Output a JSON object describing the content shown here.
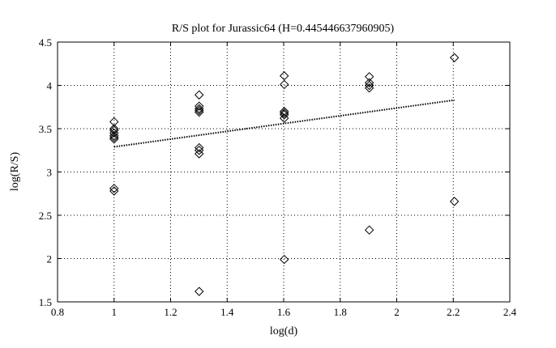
{
  "chart_data": {
    "type": "scatter",
    "title": "R/S plot for Jurassic64 (H=0.445446637960905)",
    "xlabel": "log(d)",
    "ylabel": "log(R/S)",
    "xlim": [
      0.8,
      2.4
    ],
    "ylim": [
      1.5,
      4.5
    ],
    "xticks": [
      0.8,
      1,
      1.2,
      1.4,
      1.6,
      1.8,
      2,
      2.2,
      2.4
    ],
    "xtick_labels": [
      "0.8",
      "1",
      "1.2",
      "1.4",
      "1.6",
      "1.8",
      "2",
      "2.2",
      "2.4"
    ],
    "yticks": [
      1.5,
      2,
      2.5,
      3,
      3.5,
      4,
      4.5
    ],
    "ytick_labels": [
      "1.5",
      "2",
      "2.5",
      "3",
      "3.5",
      "4",
      "4.5"
    ],
    "grid": true,
    "grid_style": "dotted",
    "points": [
      {
        "x": 1.0,
        "y": 3.58
      },
      {
        "x": 1.0,
        "y": 3.5
      },
      {
        "x": 1.0,
        "y": 3.48
      },
      {
        "x": 1.0,
        "y": 3.45
      },
      {
        "x": 1.0,
        "y": 3.42
      },
      {
        "x": 1.0,
        "y": 3.4
      },
      {
        "x": 1.0,
        "y": 3.38
      },
      {
        "x": 1.0,
        "y": 2.81
      },
      {
        "x": 1.0,
        "y": 2.78
      },
      {
        "x": 1.301,
        "y": 3.89
      },
      {
        "x": 1.301,
        "y": 3.76
      },
      {
        "x": 1.301,
        "y": 3.73
      },
      {
        "x": 1.301,
        "y": 3.71
      },
      {
        "x": 1.301,
        "y": 3.69
      },
      {
        "x": 1.301,
        "y": 3.28
      },
      {
        "x": 1.301,
        "y": 3.25
      },
      {
        "x": 1.301,
        "y": 3.21
      },
      {
        "x": 1.301,
        "y": 1.62
      },
      {
        "x": 1.602,
        "y": 4.11
      },
      {
        "x": 1.602,
        "y": 4.01
      },
      {
        "x": 1.602,
        "y": 3.7
      },
      {
        "x": 1.602,
        "y": 3.68
      },
      {
        "x": 1.602,
        "y": 3.66
      },
      {
        "x": 1.602,
        "y": 3.62
      },
      {
        "x": 1.602,
        "y": 1.99
      },
      {
        "x": 1.903,
        "y": 4.1
      },
      {
        "x": 1.903,
        "y": 4.03
      },
      {
        "x": 1.903,
        "y": 4.0
      },
      {
        "x": 1.903,
        "y": 3.97
      },
      {
        "x": 1.903,
        "y": 2.33
      },
      {
        "x": 2.204,
        "y": 4.32
      },
      {
        "x": 2.204,
        "y": 2.66
      }
    ],
    "fit_line": {
      "x": [
        1.0,
        2.204
      ],
      "y": [
        3.29,
        3.83
      ],
      "style": "dotted"
    },
    "marker": "diamond",
    "marker_color": "#000000"
  }
}
